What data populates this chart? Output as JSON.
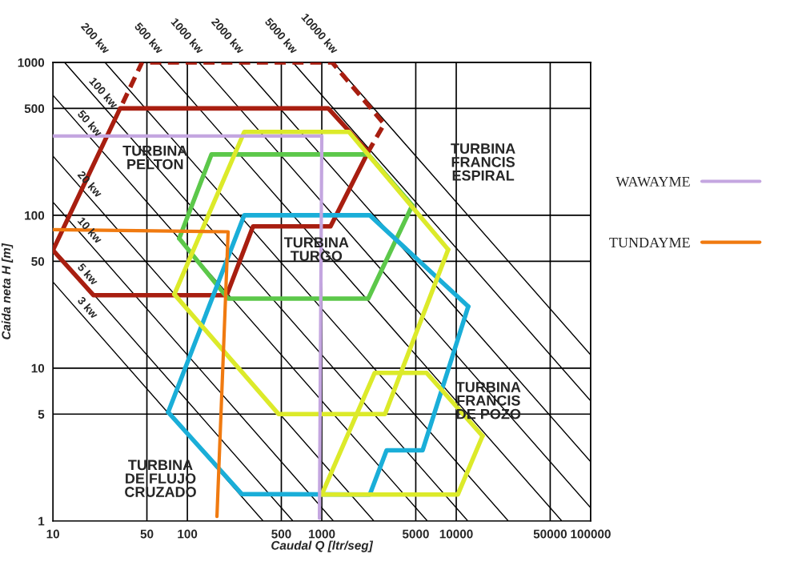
{
  "chart_data": {
    "type": "line",
    "xlabel": "Caudal Q [ltr/seg]",
    "ylabel": "Caida neta H [m]",
    "log": "xy",
    "xlim": [
      10,
      100000
    ],
    "ylim": [
      1,
      1000
    ],
    "xticks": [
      10,
      50,
      100,
      500,
      1000,
      5000,
      10000,
      50000,
      100000
    ],
    "yticks": [
      1,
      5,
      10,
      50,
      100,
      500,
      1000
    ],
    "grid": true,
    "legend": "right",
    "marker": "none",
    "series": [
      {
        "color": "#000000",
        "x": [
          10,
          366
        ],
        "values": [
          36.6,
          1
        ]
      },
      {
        "color": "#000000",
        "x": [
          10,
          610
        ],
        "values": [
          61,
          1
        ]
      },
      {
        "color": "#000000",
        "x": [
          10,
          1220
        ],
        "values": [
          122,
          1
        ]
      },
      {
        "color": "#000000",
        "x": [
          10,
          2440
        ],
        "values": [
          244,
          1
        ]
      },
      {
        "color": "#000000",
        "x": [
          10,
          6100
        ],
        "values": [
          610,
          1
        ]
      },
      {
        "color": "#000000",
        "x": [
          12.2,
          12200
        ],
        "values": [
          1000,
          1
        ]
      },
      {
        "color": "#000000",
        "x": [
          24.4,
          24400
        ],
        "values": [
          1000,
          1
        ]
      },
      {
        "color": "#000000",
        "x": [
          61,
          61000
        ],
        "values": [
          1000,
          1
        ]
      },
      {
        "color": "#000000",
        "x": [
          122,
          100000
        ],
        "values": [
          1000,
          1.22
        ]
      },
      {
        "color": "#000000",
        "x": [
          244,
          100000
        ],
        "values": [
          1000,
          2.44
        ]
      },
      {
        "color": "#000000",
        "x": [
          610,
          100000
        ],
        "values": [
          1000,
          6.1
        ]
      },
      {
        "color": "#000000",
        "x": [
          1220,
          100000
        ],
        "values": [
          1000,
          12.2
        ]
      },
      {
        "color": "#a81e10",
        "x": [
          10,
          31.6,
          1117,
          2213
        ],
        "values": [
          59,
          500,
          500,
          260
        ]
      },
      {
        "color": "#a81e10",
        "x": [
          10,
          20,
          196,
          308,
          1161,
          2213
        ],
        "values": [
          59,
          30,
          30,
          84.5,
          84.5,
          260
        ]
      },
      {
        "color": "#a81e10",
        "line_style": "dashed",
        "x": [
          33,
          46,
          1194,
          2911,
          2213
        ],
        "values": [
          540,
          1000,
          1000,
          395,
          260
        ]
      },
      {
        "color": "#5cc84a",
        "x": [
          87,
          151,
          2213,
          4710
        ],
        "values": [
          70.5,
          250,
          250,
          116
        ]
      },
      {
        "color": "#5cc84a",
        "x": [
          87,
          201,
          2213,
          4710
        ],
        "values": [
          70.5,
          28.5,
          28.5,
          116
        ]
      },
      {
        "color": "#1aaed8",
        "x": [
          72,
          265,
          2275,
          12280
        ],
        "values": [
          5.15,
          100,
          100,
          25.3
        ]
      },
      {
        "color": "#1aaed8",
        "x": [
          72,
          254,
          2275,
          3034,
          5623,
          12280
        ],
        "values": [
          5.15,
          1.5,
          1.49,
          2.9,
          2.9,
          25.3
        ]
      },
      {
        "color": "#dcea2a",
        "x": [
          80,
          265,
          1592,
          8710
        ],
        "values": [
          30.4,
          351,
          351,
          59.6
        ]
      },
      {
        "color": "#dcea2a",
        "x": [
          80,
          477,
          2951,
          8710
        ],
        "values": [
          30.4,
          5,
          5,
          59.6
        ]
      },
      {
        "color": "#dcea2a",
        "x": [
          1000,
          2472,
          6026,
          15700
        ],
        "values": [
          1.49,
          9.3,
          9.3,
          3.6
        ]
      },
      {
        "color": "#dcea2a",
        "x": [
          1000,
          10280,
          15700
        ],
        "values": [
          1.49,
          1.49,
          3.6
        ]
      },
      {
        "name": "WAWAYME",
        "color": "#c4a6e0",
        "x": [
          10,
          1000,
          960
        ],
        "values": [
          330,
          330,
          1.04
        ]
      },
      {
        "name": "TUNDAYME",
        "color": "#f07a10",
        "x": [
          10,
          201,
          166
        ],
        "values": [
          80.5,
          78,
          1.07
        ]
      }
    ],
    "annotations": [
      {
        "text": "3 kw",
        "x": 14.1,
        "y": 26
      },
      {
        "text": "5 kw",
        "x": 14.1,
        "y": 43
      },
      {
        "text": "10 kw",
        "x": 14.1,
        "y": 86.5
      },
      {
        "text": "20 kw",
        "x": 14.1,
        "y": 173
      },
      {
        "text": "50 kw",
        "x": 14.1,
        "y": 432
      },
      {
        "text": "100 kw",
        "x": 17.2,
        "y": 709
      },
      {
        "text": "200 kw",
        "x": 24.4,
        "y": 1000
      },
      {
        "text": "500 kw",
        "x": 61,
        "y": 1000
      },
      {
        "text": "1000 kw",
        "x": 122,
        "y": 1000
      },
      {
        "text": "2000 kw",
        "x": 244,
        "y": 1000
      },
      {
        "text": "5000 kw",
        "x": 610,
        "y": 1000
      },
      {
        "text": "10000 kw",
        "x": 1220,
        "y": 1000
      },
      "TURBINA\nPELTON",
      "TURBINA\nTURGO",
      "TURBINA\nFRANCIS\nESPIRAL",
      "TURBINA\nFRANCIS\nDE POZO",
      "TURBINA\nDE FLUJO\nCRUZADO"
    ]
  }
}
